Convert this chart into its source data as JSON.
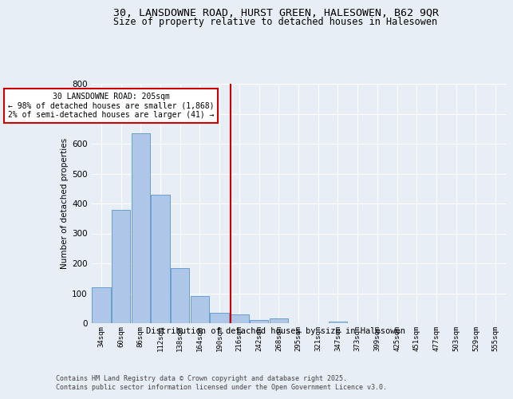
{
  "title_line1": "30, LANSDOWNE ROAD, HURST GREEN, HALESOWEN, B62 9QR",
  "title_line2": "Size of property relative to detached houses in Halesowen",
  "xlabel": "Distribution of detached houses by size in Halesowen",
  "ylabel": "Number of detached properties",
  "footer_line1": "Contains HM Land Registry data © Crown copyright and database right 2025.",
  "footer_line2": "Contains public sector information licensed under the Open Government Licence v3.0.",
  "bar_labels": [
    "34sqm",
    "60sqm",
    "86sqm",
    "112sqm",
    "138sqm",
    "164sqm",
    "190sqm",
    "216sqm",
    "242sqm",
    "268sqm",
    "295sqm",
    "321sqm",
    "347sqm",
    "373sqm",
    "399sqm",
    "425sqm",
    "451sqm",
    "477sqm",
    "503sqm",
    "529sqm",
    "555sqm"
  ],
  "bar_heights": [
    120,
    380,
    635,
    430,
    185,
    90,
    35,
    30,
    10,
    15,
    0,
    0,
    5,
    0,
    0,
    0,
    0,
    0,
    0,
    0,
    0
  ],
  "bar_color": "#aec6e8",
  "bar_edge_color": "#5a96c8",
  "marker_label": "30 LANSDOWNE ROAD: 205sqm",
  "marker_pct_left": "← 98% of detached houses are smaller (1,868)",
  "marker_pct_right": "2% of semi-detached houses are larger (41) →",
  "marker_color": "#cc0000",
  "ylim": [
    0,
    800
  ],
  "yticks": [
    0,
    100,
    200,
    300,
    400,
    500,
    600,
    700,
    800
  ],
  "bg_color": "#e8eef5",
  "plot_bg_color": "#e8eef5",
  "grid_color": "#ffffff",
  "title_fontsize": 9.5,
  "subtitle_fontsize": 8.5
}
